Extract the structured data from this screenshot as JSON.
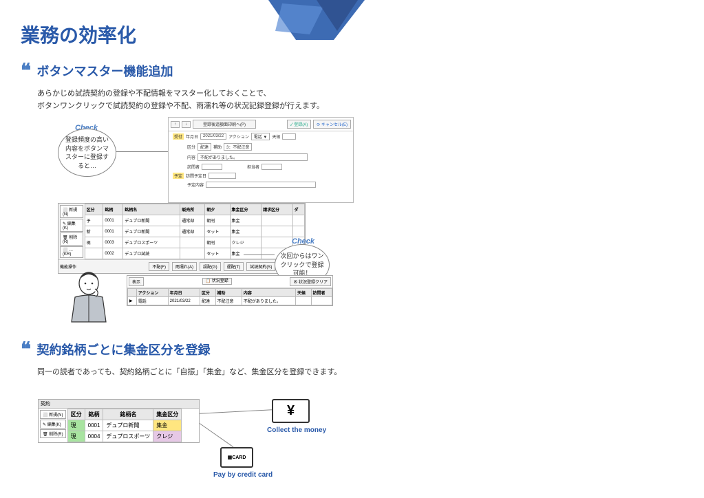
{
  "page": {
    "title": "業務の効率化"
  },
  "section1": {
    "title": "ボタンマスター機能追加",
    "desc1": "あらかじめ試読契約の登録や不配情報をマスター化しておくことで、",
    "desc2": "ボタンワンクリックで試読契約の登録や不配、雨濡れ等の状況記録登録が行えます。",
    "check1": "Check",
    "bubble1": "登録頻度の高い内容をボタンマスターに登録すると…",
    "check2": "Check",
    "bubble2": "次回からはワンクリックで登録可能！",
    "dialog": {
      "toolbar_btn1": "↑",
      "toolbar_btn2": "↓",
      "toolbar_mid": "登録後追額面印刷へ(P)",
      "toolbar_ok": "✓ 登録(A)",
      "toolbar_cancel": "⟳ キャンセル(E)",
      "recv_tag": "受付",
      "date_lbl": "年月日",
      "date_val": "2021/03/22",
      "action_lbl": "アクション",
      "action_val": "電話 ▼",
      "tenki_lbl": "天候",
      "ku_lbl": "区分",
      "ku_val": "配達",
      "hojo_lbl": "補助",
      "hojo_val": "3：不配注意",
      "naiyo_lbl": "内容",
      "naiyo_val": "不配がありました。",
      "houmon_lbl": "訪問者",
      "tanto_lbl": "担当者",
      "yoyaku_tag": "予定",
      "next_lbl": "訪問予定日",
      "yotei_lbl": "予定内容"
    },
    "table": {
      "side": [
        "⬜ 新規(N)",
        "✎ 編集(K)",
        "🗑 削除(R)",
        "⬜ …(KR)"
      ],
      "footer_side": "機能操作",
      "cols": [
        "区分",
        "銘柄",
        "銘柄名",
        "販売所",
        "朝夕",
        "集金区分",
        "請求区分",
        "ダ"
      ],
      "rows": [
        [
          "予",
          "0001",
          "デュプロ新聞",
          "通常部",
          "朝刊",
          "集金",
          "",
          ""
        ],
        [
          "新",
          "0001",
          "デュプロ新聞",
          "通常部",
          "セット",
          "集金",
          "",
          ""
        ],
        [
          "現",
          "0003",
          "デュプロスポーツ",
          "",
          "朝刊",
          "クレジ",
          "",
          ""
        ],
        [
          "止",
          "0002",
          "デュプロ試読",
          "",
          "セット",
          "集金",
          "",
          ""
        ]
      ],
      "status_cls": [
        "status-y",
        "status-g",
        "status-bl",
        "status-r"
      ],
      "cell_cls": [
        "status-y",
        "status-y",
        "status-p",
        "status-y"
      ],
      "bottom": [
        "不配(F)",
        "雨濡れ(A)",
        "誤配(G)",
        "遅配(T)",
        "試読契約(S)",
        "未注文(Z)"
      ]
    },
    "history": {
      "tab": "表示",
      "btn1": "📋 状況登録",
      "btn2": "⊗ 状況登録クリア",
      "cols": [
        "アクション",
        "年月日",
        "区分",
        "補助",
        "内容",
        "天候",
        "訪問者"
      ],
      "row": [
        "電話",
        "2021/03/22",
        "配達",
        "不配注意",
        "不配がありました。",
        "",
        ""
      ]
    }
  },
  "section2": {
    "title": "契約銘柄ごとに集金区分を登録",
    "desc": "同一の読者であっても、契約銘柄ごとに「自振」「集金」など、集金区分を登録できます。",
    "table": {
      "header": "契約",
      "side": [
        "⬜ 新規(N)",
        "✎ 編集(K)",
        "🗑 削除(R)"
      ],
      "cols": [
        "区分",
        "銘柄",
        "銘柄名",
        "集金区分"
      ],
      "rows": [
        [
          "現",
          "0001",
          "デュプロ新聞",
          "集金"
        ],
        [
          "現",
          "0004",
          "デュプロスポーツ",
          "クレジ"
        ]
      ],
      "row_cls": [
        "status-g",
        "status-g"
      ],
      "cell_cls": [
        "status-y",
        "status-p"
      ]
    },
    "money": {
      "symbol": "¥",
      "label": "Collect the money"
    },
    "card": {
      "text": "▦CARD",
      "label": "Pay by credit card"
    }
  }
}
